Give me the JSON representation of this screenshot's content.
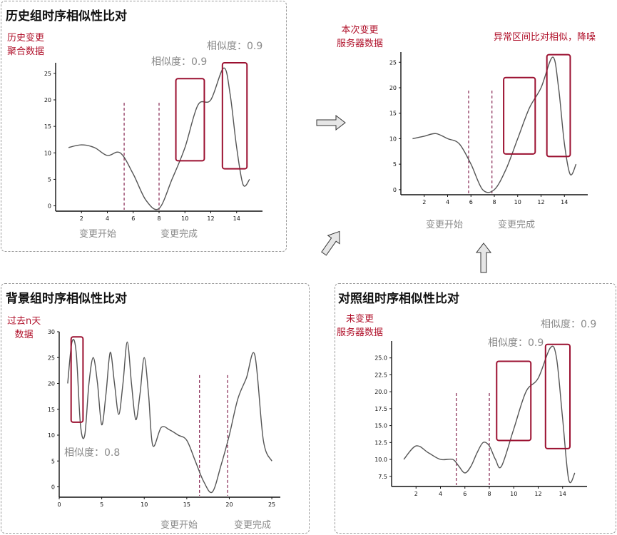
{
  "panels": {
    "history": {
      "title": "历史组时序相似性比对",
      "data_label_line1": "历史变更",
      "data_label_line2": "聚合数据",
      "similarity_a": "相似度：0.9",
      "similarity_b": "相似度：0.9",
      "change_start": "变更开始",
      "change_end": "变更完成"
    },
    "current": {
      "data_label_line1": "本次变更",
      "data_label_line2": "服务器数据",
      "anomaly_note": "异常区间比对相似，降噪",
      "change_start": "变更开始",
      "change_end": "变更完成"
    },
    "background": {
      "title": "背景组时序相似性比对",
      "data_label_line1": "过去n天",
      "data_label_line2": "数据",
      "similarity": "相似度：0.8",
      "change_start": "变更开始",
      "change_end": "变更完成"
    },
    "control": {
      "title": "对照组时序相似性比对",
      "data_label_line1": "未变更",
      "data_label_line2": "服务器数据",
      "similarity_a": "相似度：0.9",
      "similarity_b": "相似度：0.9"
    }
  },
  "colors": {
    "accent": "#b0102a",
    "highlight_box": "#9b1030",
    "marker_line": "#7a1040",
    "curve": "#555555",
    "muted_text": "#8a8a8a",
    "arrow_fill": "#e6e6e6"
  },
  "chart_data": [
    {
      "id": "history",
      "type": "line",
      "x": [
        1,
        2,
        3,
        4,
        5,
        6,
        7,
        8,
        9,
        10,
        11,
        12,
        13,
        13.5,
        14,
        14.5,
        15
      ],
      "y": [
        11,
        11.5,
        11,
        9.5,
        10,
        6,
        1,
        -0.5,
        5,
        11,
        19,
        20,
        26,
        21,
        11,
        4,
        5
      ],
      "xticks": [
        2,
        4,
        6,
        8,
        10,
        12,
        14
      ],
      "yticks": [
        0,
        5,
        10,
        15,
        20,
        25
      ],
      "xlim": [
        0,
        16
      ],
      "ylim": [
        -1,
        27
      ],
      "markers_x": [
        5.3,
        8
      ],
      "highlight_boxes": [
        {
          "x": [
            9.3,
            11.5
          ],
          "y": [
            8.5,
            24
          ]
        },
        {
          "x": [
            12.9,
            14.8
          ],
          "y": [
            7,
            27
          ]
        }
      ]
    },
    {
      "id": "current",
      "type": "line",
      "x": [
        1,
        2,
        3,
        4,
        5,
        6,
        7,
        8,
        9,
        10,
        11,
        12,
        13,
        13.5,
        14,
        14.5,
        15
      ],
      "y": [
        10,
        10.5,
        11,
        10,
        9,
        5,
        0,
        0,
        4,
        10,
        16,
        20,
        26,
        20,
        9,
        3,
        5
      ],
      "xticks": [
        2,
        4,
        6,
        8,
        10,
        12,
        14
      ],
      "yticks": [
        0,
        5,
        10,
        15,
        20,
        25
      ],
      "xlim": [
        0,
        16
      ],
      "ylim": [
        -1,
        27
      ],
      "markers_x": [
        5.8,
        7.8
      ],
      "highlight_boxes": [
        {
          "x": [
            8.8,
            11.5
          ],
          "y": [
            7,
            22
          ]
        },
        {
          "x": [
            12.5,
            14.5
          ],
          "y": [
            6.5,
            26.5
          ]
        }
      ]
    },
    {
      "id": "background",
      "type": "line",
      "x": [
        1,
        1.5,
        2,
        2.5,
        3,
        3.5,
        4,
        4.5,
        5,
        5.5,
        6,
        6.5,
        7,
        7.5,
        8,
        8.5,
        9,
        9.5,
        10,
        10.5,
        11,
        12,
        13,
        14,
        15,
        16,
        17,
        18,
        19,
        20,
        21,
        22,
        23,
        24,
        25
      ],
      "y": [
        20,
        28,
        26,
        12,
        10,
        20,
        25,
        20,
        12,
        18,
        26,
        20,
        14,
        20,
        28,
        20,
        13,
        18,
        25,
        18,
        8,
        11.5,
        11,
        10,
        9,
        5,
        1,
        -1,
        4,
        10,
        17,
        21,
        25.5,
        9,
        5
      ],
      "xticks": [
        0,
        5,
        10,
        15,
        20,
        25
      ],
      "yticks": [
        0,
        5,
        10,
        15,
        20,
        25,
        30
      ],
      "xlim": [
        0,
        26
      ],
      "ylim": [
        -2,
        30
      ],
      "markers_x": [
        16.5,
        19.8
      ],
      "highlight_boxes": [
        {
          "x": [
            1.4,
            2.8
          ],
          "y": [
            12.5,
            29
          ]
        }
      ]
    },
    {
      "id": "control",
      "type": "line",
      "x": [
        1,
        2,
        3,
        4,
        5,
        5.5,
        6,
        6.5,
        7,
        7.5,
        8,
        8.5,
        9,
        10,
        11,
        12,
        13,
        13.5,
        14,
        14.5,
        15
      ],
      "y": [
        10,
        12,
        11,
        10,
        10,
        9,
        8,
        9,
        11,
        12.5,
        12,
        10,
        9,
        14.5,
        20,
        22,
        26.5,
        25,
        16,
        7,
        8
      ],
      "xticks": [
        2,
        4,
        6,
        8,
        10,
        12,
        14
      ],
      "yticks": [
        7.5,
        10.0,
        12.5,
        15.0,
        17.5,
        20.0,
        22.5,
        25.0
      ],
      "xlim": [
        0,
        16
      ],
      "ylim": [
        6,
        27.5
      ],
      "markers_x": [
        5.3,
        8
      ],
      "highlight_boxes": [
        {
          "x": [
            8.6,
            11.4
          ],
          "y": [
            12.8,
            24.5
          ]
        },
        {
          "x": [
            12.6,
            14.6
          ],
          "y": [
            11.6,
            27
          ]
        }
      ]
    }
  ]
}
